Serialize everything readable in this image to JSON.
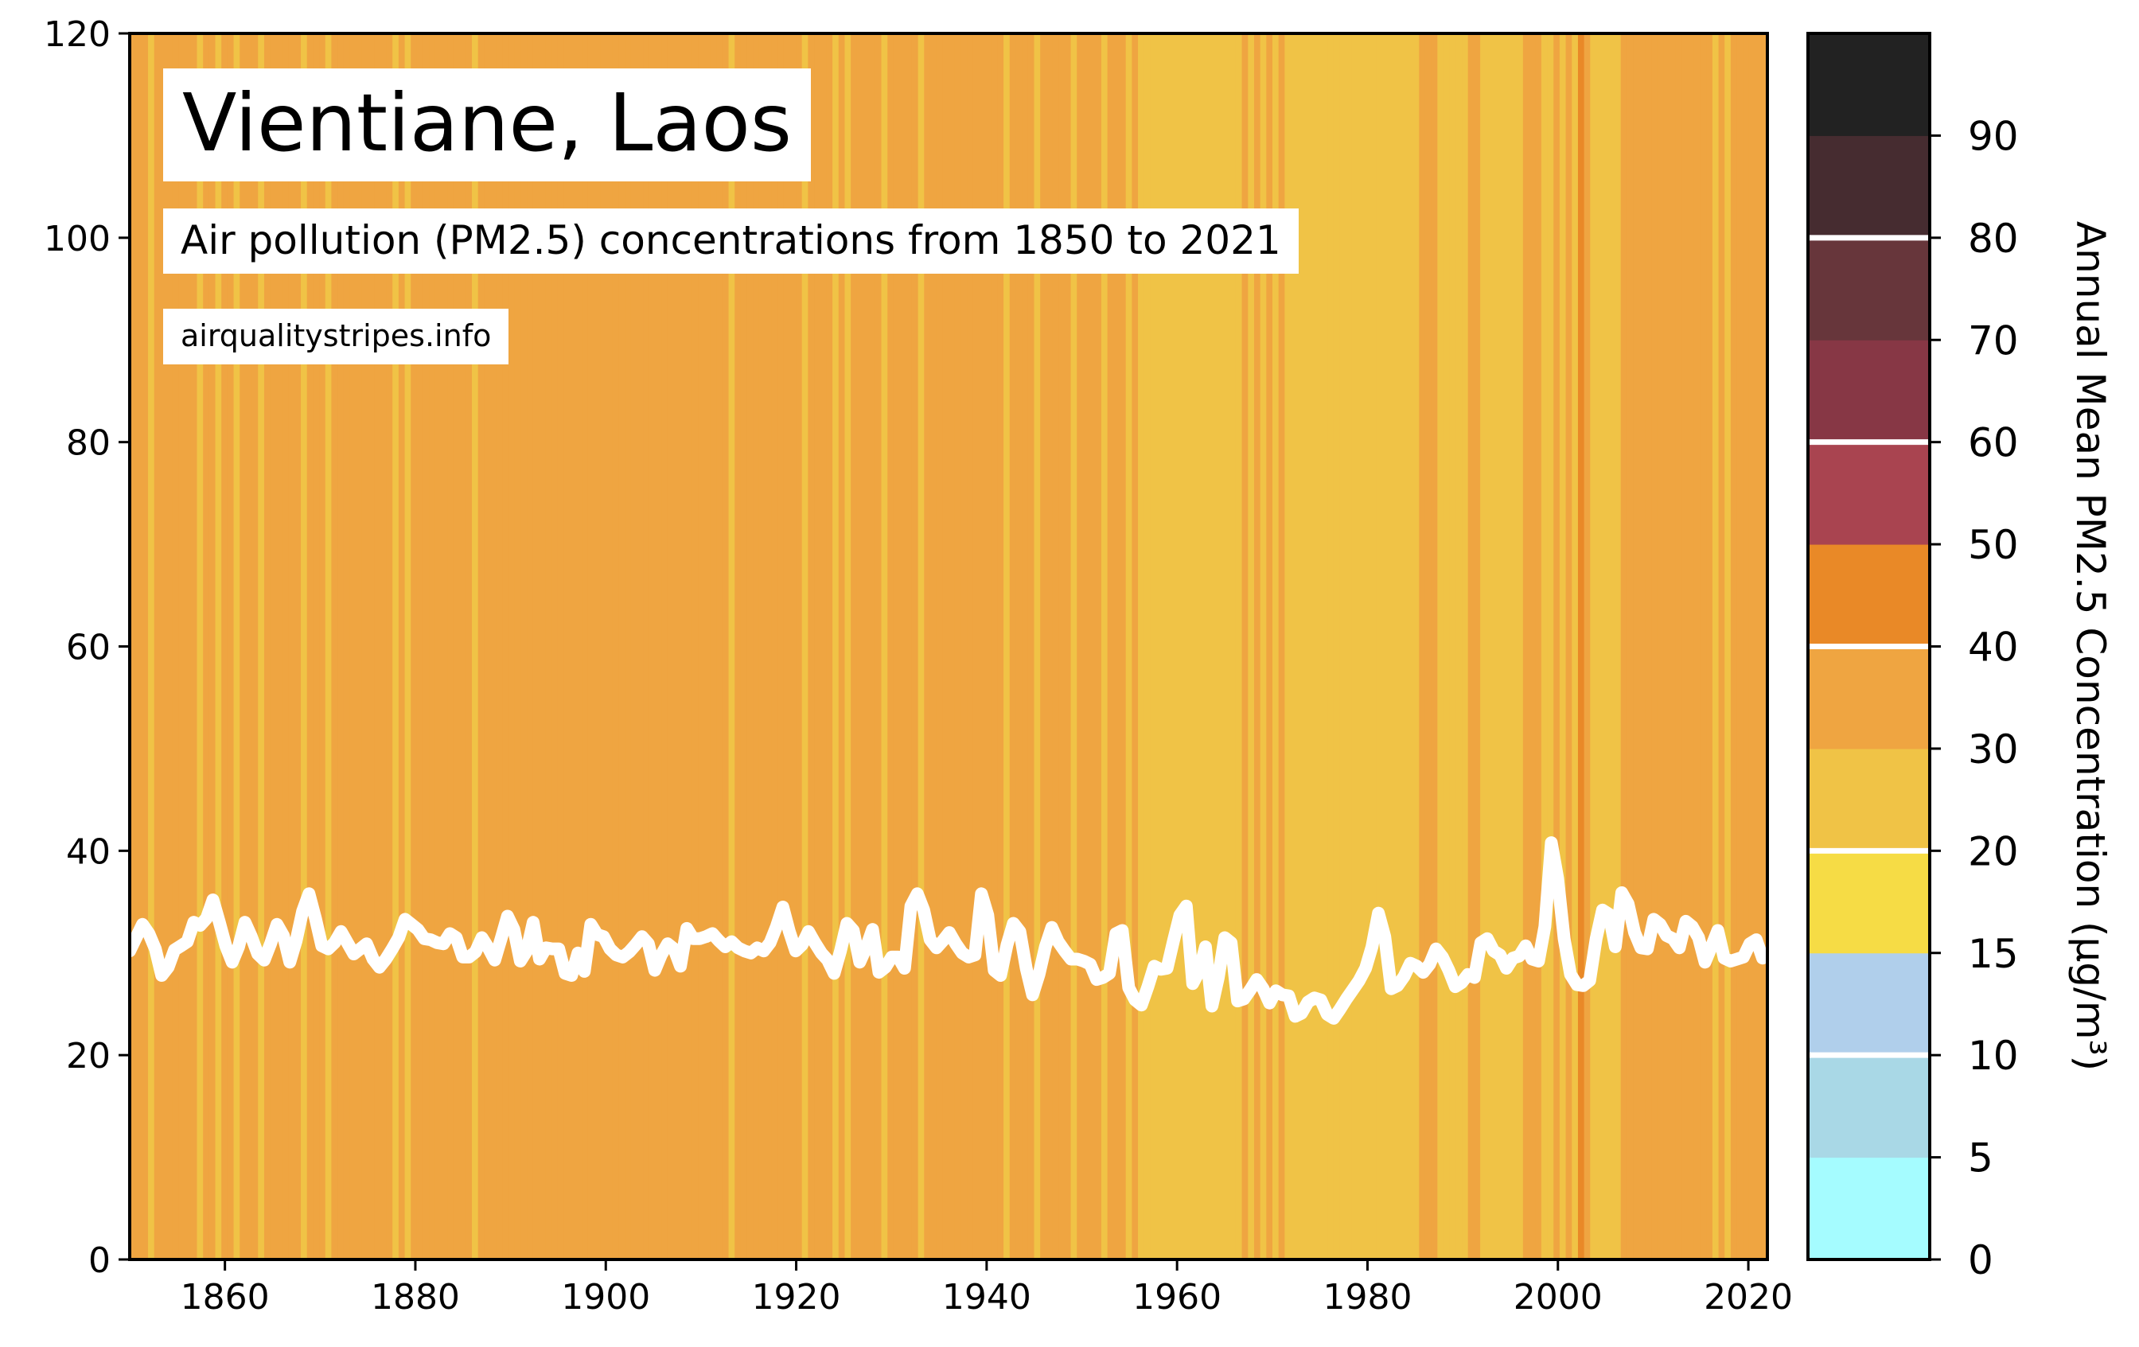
{
  "title": "Vientiane, Laos",
  "subtitle": "Air pollution (PM2.5) concentrations from 1850 to 2021",
  "source": "airqualitystripes.info",
  "chart_data": {
    "type": "line",
    "background": "stripes",
    "x_start": 1850,
    "x_end": 2021,
    "xlim": [
      1850,
      2022
    ],
    "ylim": [
      0,
      120
    ],
    "x_ticks": [
      1860,
      1880,
      1900,
      1920,
      1940,
      1960,
      1980,
      2000,
      2020
    ],
    "y_ticks": [
      0,
      20,
      40,
      60,
      80,
      100,
      120
    ],
    "line_color": "#ffffff",
    "grid": false,
    "values": [
      30.2,
      31.5,
      32.8,
      31.9,
      30.4,
      27.8,
      28.6,
      30.3,
      30.7,
      31.1,
      33.0,
      32.7,
      33.4,
      35.2,
      33.0,
      30.7,
      29.1,
      30.6,
      33.0,
      31.6,
      29.9,
      29.3,
      30.9,
      32.8,
      31.7,
      29.1,
      31.2,
      34.1,
      35.8,
      33.4,
      30.7,
      30.4,
      31.0,
      32.1,
      31.0,
      29.9,
      30.4,
      30.9,
      29.4,
      28.6,
      29.4,
      30.4,
      31.5,
      33.3,
      32.8,
      32.3,
      31.4,
      31.3,
      31.0,
      30.9,
      31.9,
      31.5,
      29.6,
      29.6,
      30.1,
      31.5,
      30.5,
      29.3,
      31.4,
      33.6,
      32.3,
      29.2,
      30.2,
      33.0,
      29.4,
      30.5,
      30.4,
      30.4,
      28.0,
      27.8,
      30.0,
      28.2,
      32.8,
      31.8,
      31.6,
      30.4,
      29.8,
      29.6,
      30.1,
      30.8,
      31.6,
      30.9,
      28.3,
      29.8,
      30.9,
      30.4,
      28.7,
      32.4,
      31.4,
      31.4,
      31.6,
      31.9,
      31.2,
      30.6,
      31.1,
      30.5,
      30.2,
      30.0,
      30.5,
      30.2,
      31.0,
      32.6,
      34.5,
      32.1,
      30.2,
      30.8,
      32.1,
      31.0,
      30.0,
      29.3,
      28.0,
      30.2,
      32.9,
      32.2,
      29.1,
      30.5,
      32.3,
      28.1,
      28.6,
      29.6,
      29.6,
      28.5,
      34.6,
      35.8,
      34.2,
      31.3,
      30.5,
      31.2,
      32.0,
      30.9,
      30.0,
      29.6,
      29.8,
      35.8,
      33.7,
      28.3,
      27.8,
      30.8,
      32.9,
      32.1,
      28.5,
      25.9,
      27.9,
      30.6,
      32.5,
      31.1,
      30.2,
      29.4,
      29.4,
      29.2,
      28.9,
      27.4,
      27.6,
      28.0,
      31.9,
      32.2,
      26.6,
      25.4,
      24.9,
      26.7,
      28.7,
      28.4,
      28.5,
      31.2,
      33.7,
      34.6,
      27.0,
      28.2,
      30.6,
      24.8,
      27.6,
      31.5,
      31.0,
      25.3,
      25.5,
      26.4,
      27.4,
      26.5,
      25.1,
      26.3,
      25.9,
      25.8,
      23.8,
      24.1,
      25.2,
      25.6,
      25.4,
      24.0,
      23.6,
      24.5,
      25.5,
      26.4,
      27.3,
      28.5,
      30.6,
      33.9,
      31.6,
      26.5,
      26.8,
      27.7,
      29.0,
      28.7,
      28.1,
      28.9,
      30.4,
      29.6,
      28.3,
      26.7,
      27.1,
      27.9,
      27.6,
      31.0,
      31.4,
      30.2,
      29.8,
      28.5,
      29.5,
      29.7,
      30.7,
      29.4,
      29.2,
      32.6,
      40.8,
      37.3,
      31.4,
      27.9,
      26.9,
      26.8,
      27.3,
      31.4,
      34.2,
      33.8,
      30.6,
      35.9,
      34.8,
      32.0,
      30.5,
      30.4,
      33.3,
      32.8,
      31.7,
      31.4,
      30.5,
      33.1,
      32.6,
      31.5,
      29.1,
      30.6,
      32.2,
      29.5,
      29.2,
      29.4,
      29.6,
      30.9,
      31.3,
      29.5
    ],
    "stripe_colors": [
      "#efa541",
      "#efa541",
      "#efa541",
      "#f0c346",
      "#efa541",
      "#efa541",
      "#efa541",
      "#efa541",
      "#efa541",
      "#efa541",
      "#efa541",
      "#f0c346",
      "#efa541",
      "#efa541",
      "#f0c346",
      "#efa541",
      "#efa541",
      "#f0c346",
      "#efa541",
      "#efa541",
      "#efa541",
      "#f0c346",
      "#efa541",
      "#efa541",
      "#efa541",
      "#efa541",
      "#efa541",
      "#efa541",
      "#f0c346",
      "#efa541",
      "#efa541",
      "#efa541",
      "#f0c346",
      "#efa541",
      "#efa541",
      "#efa541",
      "#efa541",
      "#efa541",
      "#efa541",
      "#efa541",
      "#efa541",
      "#efa541",
      "#efa541",
      "#f0c346",
      "#efa541",
      "#f0c346",
      "#efa541",
      "#efa541",
      "#efa541",
      "#efa541",
      "#efa541",
      "#efa541",
      "#efa541",
      "#efa541",
      "#efa541",
      "#efa541",
      "#f0c346",
      "#efa541",
      "#efa541",
      "#efa541",
      "#efa541",
      "#efa541",
      "#efa541",
      "#efa541",
      "#efa541",
      "#efa541",
      "#efa541",
      "#efa541",
      "#efa541",
      "#efa541",
      "#efa541",
      "#efa541",
      "#efa541",
      "#efa541",
      "#efa541",
      "#efa541",
      "#efa541",
      "#efa541",
      "#efa541",
      "#efa541",
      "#efa541",
      "#efa541",
      "#efa541",
      "#efa541",
      "#efa541",
      "#efa541",
      "#efa541",
      "#efa541",
      "#efa541",
      "#efa541",
      "#efa541",
      "#efa541",
      "#efa541",
      "#efa541",
      "#efa541",
      "#efa541",
      "#efa541",
      "#efa541",
      "#f0c346",
      "#efa541",
      "#efa541",
      "#efa541",
      "#efa541",
      "#efa541",
      "#efa541",
      "#efa541",
      "#efa541",
      "#efa541",
      "#efa541",
      "#efa541",
      "#f0c346",
      "#efa541",
      "#efa541",
      "#efa541",
      "#efa541",
      "#f0c346",
      "#efa541",
      "#f0c346",
      "#efa541",
      "#efa541",
      "#efa541",
      "#efa541",
      "#efa541",
      "#f0c346",
      "#efa541",
      "#efa541",
      "#efa541",
      "#efa541",
      "#efa541",
      "#f0c346",
      "#efa541",
      "#efa541",
      "#efa541",
      "#efa541",
      "#efa541",
      "#efa541",
      "#efa541",
      "#efa541",
      "#efa541",
      "#efa541",
      "#efa541",
      "#efa541",
      "#efa541",
      "#f0c346",
      "#efa541",
      "#efa541",
      "#efa541",
      "#efa541",
      "#f0c346",
      "#efa541",
      "#efa541",
      "#efa541",
      "#efa541",
      "#efa541",
      "#f0c346",
      "#efa541",
      "#efa541",
      "#efa541",
      "#efa541",
      "#f0c346",
      "#efa541",
      "#efa541",
      "#efa541",
      "#f0c346",
      "#efa541",
      "#f0c346",
      "#f0c346",
      "#f0c346",
      "#f0c346",
      "#f0c346",
      "#f0c346",
      "#f0c346",
      "#f0c346",
      "#f0c346",
      "#f0c346",
      "#f0c346",
      "#f0c346",
      "#f0c346",
      "#f0c346",
      "#f0c346",
      "#f0c346",
      "#f0c346",
      "#efa541",
      "#f0c346",
      "#efa541",
      "#f0c346",
      "#efa541",
      "#f0c346",
      "#efa541",
      "#f0c346",
      "#f0c346",
      "#f0c346",
      "#f0c346",
      "#f0c346",
      "#f0c346",
      "#f0c346",
      "#f0c346",
      "#f0c346",
      "#f0c346",
      "#f0c346",
      "#f0c346",
      "#f0c346",
      "#f0c346",
      "#f0c346",
      "#f0c346",
      "#f0c346",
      "#f0c346",
      "#f0c346",
      "#f0c346",
      "#f0c346",
      "#f0c346",
      "#efa541",
      "#efa541",
      "#efa541",
      "#f0c346",
      "#f0c346",
      "#f0c346",
      "#f0c346",
      "#f0c346",
      "#efa541",
      "#efa541",
      "#f0c346",
      "#f0c346",
      "#f0c346",
      "#f0c346",
      "#f0c346",
      "#f0c346",
      "#f0c346",
      "#efa541",
      "#efa541",
      "#efa541",
      "#f0c346",
      "#f0c346",
      "#efa541",
      "#f0c346",
      "#efa541",
      "#f0c346",
      "#e98927",
      "#efa541",
      "#f0c346",
      "#f0c346",
      "#f0c346",
      "#f0c346",
      "#f0c346",
      "#efa541",
      "#efa541",
      "#efa541",
      "#efa541",
      "#efa541",
      "#efa541",
      "#efa541",
      "#efa541",
      "#efa541",
      "#efa541",
      "#efa541",
      "#efa541",
      "#efa541",
      "#efa541",
      "#efa541",
      "#f0c346",
      "#efa541",
      "#f0c346",
      "#efa541",
      "#efa541",
      "#efa541",
      "#efa541",
      "#efa541",
      "#efa541"
    ]
  },
  "colorbar": {
    "label": "Annual Mean PM2.5 Concentration (μg/m³)",
    "tick_labels": [
      "0",
      "5",
      "10",
      "15",
      "20",
      "30",
      "40",
      "50",
      "60",
      "70",
      "80",
      "90"
    ],
    "bins": [
      {
        "color": "#a5fcff"
      },
      {
        "color": "#a9d8e6"
      },
      {
        "color": "#b0cfeb"
      },
      {
        "color": "#f6dc45"
      },
      {
        "color": "#f0c346"
      },
      {
        "color": "#efa541"
      },
      {
        "color": "#e98927"
      },
      {
        "color": "#a94450"
      },
      {
        "color": "#873745"
      },
      {
        "color": "#67363b"
      },
      {
        "color": "#462c30"
      },
      {
        "color": "#222222"
      }
    ],
    "divider_color": "#ffffff"
  }
}
